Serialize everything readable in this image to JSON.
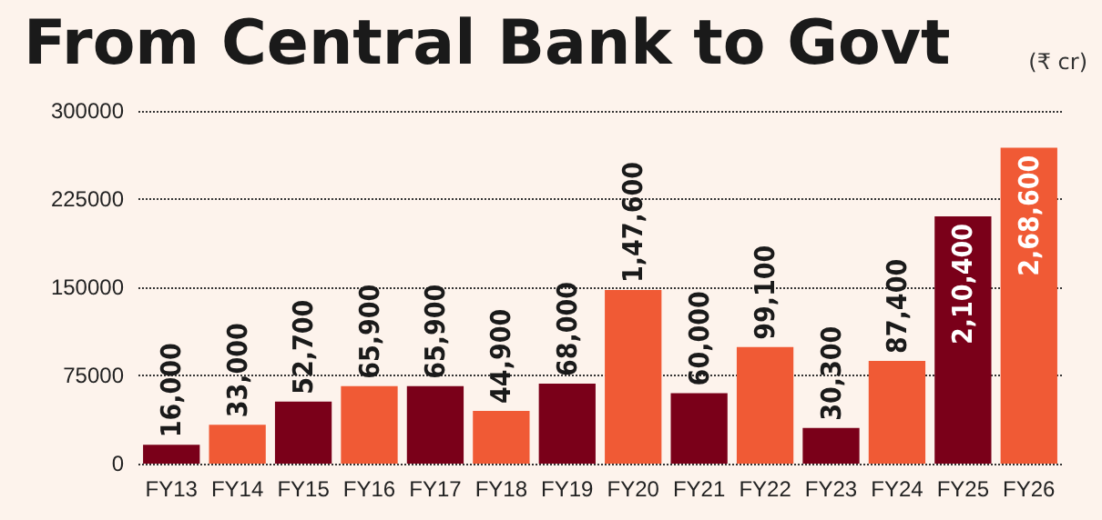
{
  "chart_data": {
    "type": "bar",
    "title": "From Central Bank to Govt",
    "annotations": [
      "(₹ cr)"
    ],
    "categories": [
      "FY13",
      "FY14",
      "FY15",
      "FY16",
      "FY17",
      "FY18",
      "FY19",
      "FY20",
      "FY21",
      "FY22",
      "FY23",
      "FY24",
      "FY25",
      "FY26"
    ],
    "values": [
      16000,
      33000,
      52700,
      65900,
      65900,
      44900,
      68000,
      147600,
      60000,
      99100,
      30300,
      87400,
      210400,
      268600
    ],
    "value_labels": [
      "16,000",
      "33,000",
      "52,700",
      "65,900",
      "65,900",
      "44,900",
      "68,000",
      "1,47,600",
      "60,000",
      "99,100",
      "30,300",
      "87,400",
      "2,10,400",
      "2,68,600"
    ],
    "colors": [
      "#7a0019",
      "#f05a35",
      "#7a0019",
      "#f05a35",
      "#7a0019",
      "#f05a35",
      "#7a0019",
      "#f05a35",
      "#7a0019",
      "#f05a35",
      "#7a0019",
      "#f05a35",
      "#7a0019",
      "#f05a35"
    ],
    "ylim": [
      0,
      300000
    ],
    "yticks": [
      0,
      75000,
      150000,
      225000,
      300000
    ],
    "grid": "y"
  }
}
